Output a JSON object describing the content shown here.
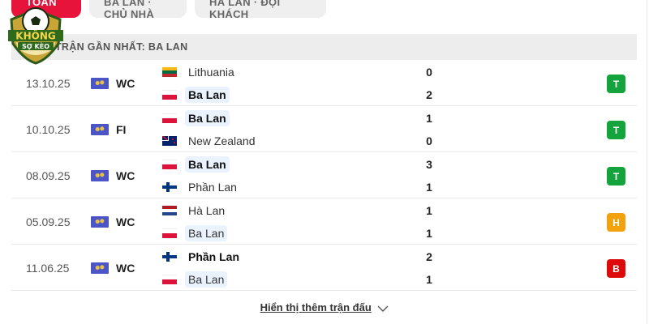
{
  "tabs": [
    {
      "label": "TOÀN BỘ",
      "active": true
    },
    {
      "label": "BA LAN · CHỦ NHÀ"
    },
    {
      "label": "HÀ LAN · ĐỘI KHÁCH"
    }
  ],
  "logo": {
    "text": "KHÔNG SỢ KÈO"
  },
  "section_title": "TRẬN GẦN NHẤT: BA LAN",
  "matches": [
    {
      "date": "13.10.25",
      "competition": "WC",
      "home": {
        "name": "Lithuania",
        "flag": "lithuania",
        "bold": false,
        "highlight": false
      },
      "away": {
        "name": "Ba Lan",
        "flag": "poland",
        "bold": true,
        "highlight": true
      },
      "home_score": "0",
      "away_score": "2",
      "result": "T"
    },
    {
      "date": "10.10.25",
      "competition": "FI",
      "home": {
        "name": "Ba Lan",
        "flag": "poland",
        "bold": true,
        "highlight": true
      },
      "away": {
        "name": "New Zealand",
        "flag": "new-zealand",
        "bold": false,
        "highlight": false
      },
      "home_score": "1",
      "away_score": "0",
      "result": "T"
    },
    {
      "date": "08.09.25",
      "competition": "WC",
      "home": {
        "name": "Ba Lan",
        "flag": "poland",
        "bold": true,
        "highlight": true
      },
      "away": {
        "name": "Phần Lan",
        "flag": "finland",
        "bold": false,
        "highlight": false
      },
      "home_score": "3",
      "away_score": "1",
      "result": "T"
    },
    {
      "date": "05.09.25",
      "competition": "WC",
      "home": {
        "name": "Hà Lan",
        "flag": "netherlands",
        "bold": false,
        "highlight": false
      },
      "away": {
        "name": "Ba Lan",
        "flag": "poland",
        "bold": false,
        "highlight": true
      },
      "home_score": "1",
      "away_score": "1",
      "result": "H"
    },
    {
      "date": "11.06.25",
      "competition": "WC",
      "home": {
        "name": "Phần Lan",
        "flag": "finland",
        "bold": true,
        "highlight": false
      },
      "away": {
        "name": "Ba Lan",
        "flag": "poland",
        "bold": false,
        "highlight": true
      },
      "home_score": "2",
      "away_score": "1",
      "result": "B"
    }
  ],
  "result_colors": {
    "T": "#14a33c",
    "H": "#f2a20c",
    "B": "#dc0a0a"
  },
  "show_more": "Hiển thị thêm trận đấu"
}
